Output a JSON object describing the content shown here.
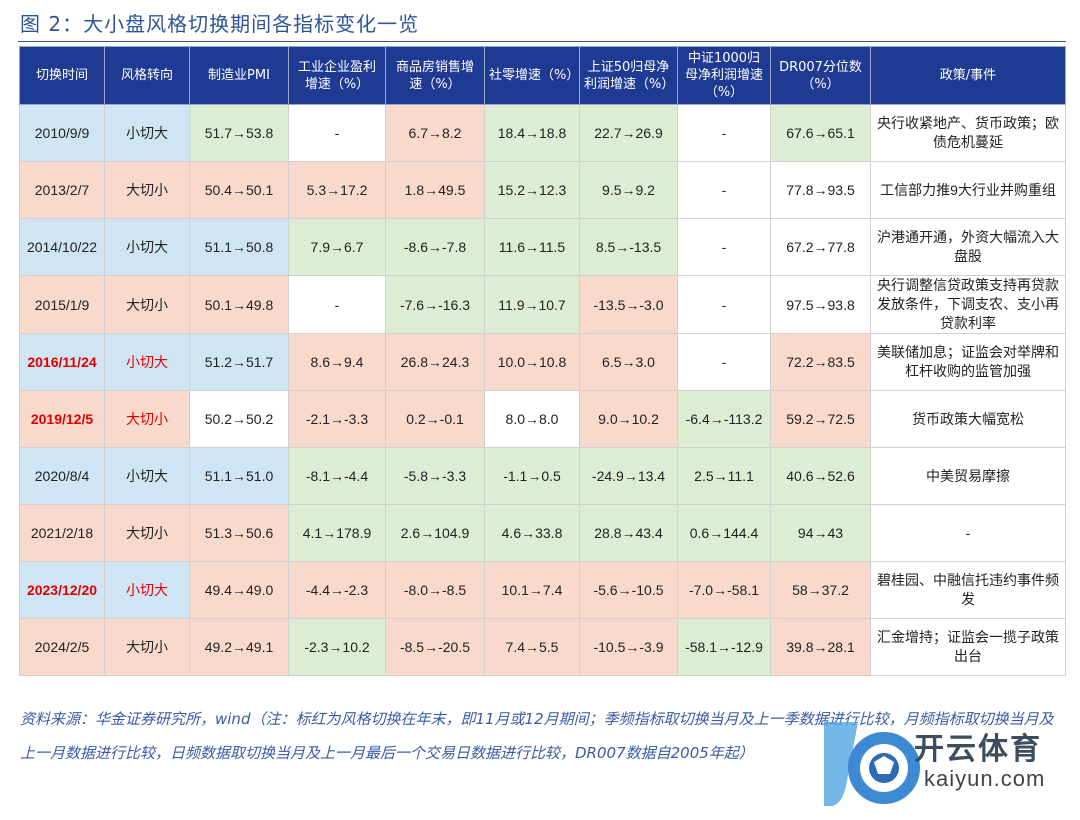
{
  "title": "图 2：大小盘风格切换期间各指标变化一览",
  "table": {
    "headers": [
      "切换时间",
      "风格转向",
      "制造业PMI",
      "工业企业盈利增速（%）",
      "商品房销售增速（%）",
      "社零增速（%）",
      "上证50归母净利润增速（%）",
      "中证1000归母净利润增速（%）",
      "DR007分位数（%）",
      "政策/事件"
    ],
    "rows": [
      {
        "date": "2010/9/9",
        "direction": "小切大",
        "red": false,
        "values": [
          "51.7→53.8",
          "-",
          "6.7→8.2",
          "18.4→18.8",
          "22.7→26.9",
          "-",
          "67.6→65.1"
        ],
        "policy": "央行收紧地产、货币政策；欧债危机蔓延"
      },
      {
        "date": "2013/2/7",
        "direction": "大切小",
        "red": false,
        "values": [
          "50.4→50.1",
          "5.3→17.2",
          "1.8→49.5",
          "15.2→12.3",
          "9.5→9.2",
          "-",
          "77.8→93.5"
        ],
        "policy": "工信部力推9大行业并购重组"
      },
      {
        "date": "2014/10/22",
        "direction": "小切大",
        "red": false,
        "values": [
          "51.1→50.8",
          "7.9→6.7",
          "-8.6→-7.8",
          "11.6→11.5",
          "8.5→-13.5",
          "-",
          "67.2→77.8"
        ],
        "policy": "沪港通开通，外资大幅流入大盘股"
      },
      {
        "date": "2015/1/9",
        "direction": "大切小",
        "red": false,
        "values": [
          "50.1→49.8",
          "-",
          "-7.6→-16.3",
          "11.9→10.7",
          "-13.5→-3.0",
          "-",
          "97.5→93.8"
        ],
        "policy": "央行调整信贷政策支持再贷款发放条件，下调支农、支小再贷款利率"
      },
      {
        "date": "2016/11/24",
        "direction": "小切大",
        "red": true,
        "values": [
          "51.2→51.7",
          "8.6→9.4",
          "26.8→24.3",
          "10.0→10.8",
          "6.5→3.0",
          "-",
          "72.2→83.5"
        ],
        "policy": "美联储加息；证监会对举牌和杠杆收购的监管加强"
      },
      {
        "date": "2019/12/5",
        "direction": "大切小",
        "red": true,
        "values": [
          "50.2→50.2",
          "-2.1→-3.3",
          "0.2→-0.1",
          "8.0→8.0",
          "9.0→10.2",
          "-6.4→-113.2",
          "59.2→72.5"
        ],
        "policy": "货币政策大幅宽松"
      },
      {
        "date": "2020/8/4",
        "direction": "小切大",
        "red": false,
        "values": [
          "51.1→51.0",
          "-8.1→-4.4",
          "-5.8→-3.3",
          "-1.1→0.5",
          "-24.9→13.4",
          "2.5→11.1",
          "40.6→52.6"
        ],
        "policy": "中美贸易摩擦"
      },
      {
        "date": "2021/2/18",
        "direction": "大切小",
        "red": false,
        "values": [
          "51.3→50.6",
          "4.1→178.9",
          "2.6→104.9",
          "4.6→33.8",
          "28.8→43.4",
          "0.6→144.4",
          "94→43"
        ],
        "policy": "-"
      },
      {
        "date": "2023/12/20",
        "direction": "小切大",
        "red": true,
        "values": [
          "49.4→49.0",
          "-4.4→-2.3",
          "-8.0→-8.5",
          "10.1→7.4",
          "-5.6→-10.5",
          "-7.0→-58.1",
          "58→37.2"
        ],
        "policy": "碧桂园、中融信托违约事件频发"
      },
      {
        "date": "2024/2/5",
        "direction": "大切小",
        "red": false,
        "values": [
          "49.2→49.1",
          "-2.3→10.2",
          "-8.5→-20.5",
          "7.4→5.5",
          "-10.5→-3.9",
          "-58.1→-12.9",
          "39.8→28.1"
        ],
        "policy": "汇金增持；证监会一揽子政策出台"
      }
    ]
  },
  "note": "资料来源：华金证券研究所，wind（注：标红为风格切换在年末，即11月或12月期间；季频指标取切换当月及上一季数据进行比较，月频指标取切换当月及上一月数据进行比较，日频数据取切换当月及上一月最后一个交易日数据进行比较，DR007数据自2005年起）",
  "watermark": {
    "brand": "开云体育",
    "site": "kaiyun.com"
  },
  "colors": {
    "header": "#1f3a93",
    "blue": "#cfe5f4",
    "pink": "#f9d9cc",
    "green": "#dcedd3",
    "red_text": "#e00000",
    "title": "#2f5597"
  },
  "cell_colors": [
    [
      "c-blue",
      "c-blue",
      "c-green",
      "c-white",
      "c-pink",
      "c-green",
      "c-green",
      "c-white",
      "c-green",
      "c-white"
    ],
    [
      "c-pink",
      "c-pink",
      "c-pink",
      "c-pink",
      "c-pink",
      "c-green",
      "c-green",
      "c-white",
      "c-white",
      "c-white"
    ],
    [
      "c-blue",
      "c-blue",
      "c-blue",
      "c-green",
      "c-green",
      "c-green",
      "c-green",
      "c-white",
      "c-white",
      "c-white"
    ],
    [
      "c-pink",
      "c-pink",
      "c-pink",
      "c-white",
      "c-green",
      "c-green",
      "c-pink",
      "c-white",
      "c-white",
      "c-white"
    ],
    [
      "c-blue",
      "c-blue",
      "c-blue",
      "c-pink",
      "c-pink",
      "c-pink",
      "c-pink",
      "c-white",
      "c-pink",
      "c-white"
    ],
    [
      "c-pink",
      "c-pink",
      "c-white",
      "c-pink",
      "c-pink",
      "c-white",
      "c-pink",
      "c-green",
      "c-pink",
      "c-white"
    ],
    [
      "c-blue",
      "c-blue",
      "c-blue",
      "c-green",
      "c-green",
      "c-green",
      "c-green",
      "c-green",
      "c-green",
      "c-white"
    ],
    [
      "c-pink",
      "c-pink",
      "c-pink",
      "c-green",
      "c-green",
      "c-green",
      "c-green",
      "c-green",
      "c-green",
      "c-white"
    ],
    [
      "c-blue",
      "c-blue",
      "c-pink",
      "c-pink",
      "c-pink",
      "c-pink",
      "c-pink",
      "c-pink",
      "c-pink",
      "c-white"
    ],
    [
      "c-pink",
      "c-pink",
      "c-pink",
      "c-green",
      "c-pink",
      "c-pink",
      "c-pink",
      "c-green",
      "c-pink",
      "c-white"
    ]
  ]
}
